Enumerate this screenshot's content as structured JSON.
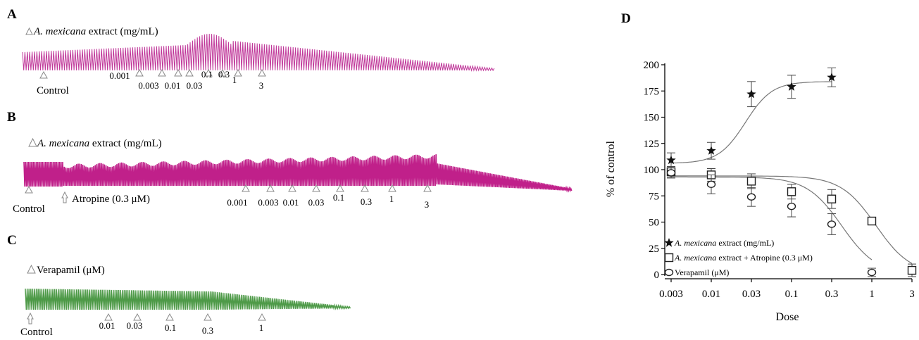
{
  "panels": {
    "A": {
      "letter": "A",
      "header_italic": "A. mexicana",
      "header_rest": " extract (mg/mL)",
      "control_label": "Control",
      "doses": [
        "0.001",
        "0.003",
        "0.01",
        "0.03",
        "0.1",
        "0.3",
        "1",
        "3"
      ],
      "trace_color": "#c0389a"
    },
    "B": {
      "letter": "B",
      "header_italic": "A. mexicana",
      "header_rest": " extract (mg/mL)",
      "control_label": "Control",
      "atropine_label": "Atropine (0.3 μM)",
      "doses": [
        "0.001",
        "0.003",
        "0.01",
        "0.03",
        "0.1",
        "0.3",
        "1",
        "3"
      ],
      "trace_color": "#c0208a"
    },
    "C": {
      "letter": "C",
      "header": "Verapamil (μM)",
      "control_label": "Control",
      "doses": [
        "0.01",
        "0.03",
        "0.1",
        "0.3",
        "1"
      ],
      "trace_color": "#4e9a48"
    },
    "D": {
      "letter": "D"
    }
  },
  "chart_data": {
    "type": "scatter",
    "scale": "log-categorical",
    "x": [
      "0.003",
      "0.01",
      "0.03",
      "0.1",
      "0.3",
      "1",
      "3"
    ],
    "xlabel": "Dose",
    "ylabel": "% of control",
    "ylim": [
      0,
      200
    ],
    "yticks": [
      "0",
      "25",
      "50",
      "75",
      "100",
      "125",
      "150",
      "175",
      "200"
    ],
    "grid": false,
    "legend_position": "bottom-left",
    "series": [
      {
        "name_italic": "A. mexicana",
        "name_rest": " extract (mg/mL)",
        "marker": "star",
        "x": [
          "0.003",
          "0.01",
          "0.03",
          "0.1",
          "0.3"
        ],
        "y": [
          109,
          118,
          172,
          179,
          188
        ],
        "err": [
          7,
          8,
          12,
          11,
          9
        ]
      },
      {
        "name_italic": "A. mexicana",
        "name_rest": " extract + Atropine (0.3 μM)",
        "marker": "square",
        "x": [
          "0.003",
          "0.01",
          "0.03",
          "0.1",
          "0.3",
          "1",
          "3"
        ],
        "y": [
          98,
          95,
          89,
          79,
          72,
          51,
          4
        ],
        "err": [
          5,
          6,
          7,
          7,
          9,
          3,
          6
        ]
      },
      {
        "name": "Verapamil (μM)",
        "marker": "circle",
        "x": [
          "0.003",
          "0.01",
          "0.03",
          "0.1",
          "0.3",
          "1"
        ],
        "y": [
          97,
          86,
          74,
          65,
          48,
          2
        ],
        "err": [
          5,
          9,
          9,
          10,
          10,
          4
        ]
      }
    ]
  }
}
